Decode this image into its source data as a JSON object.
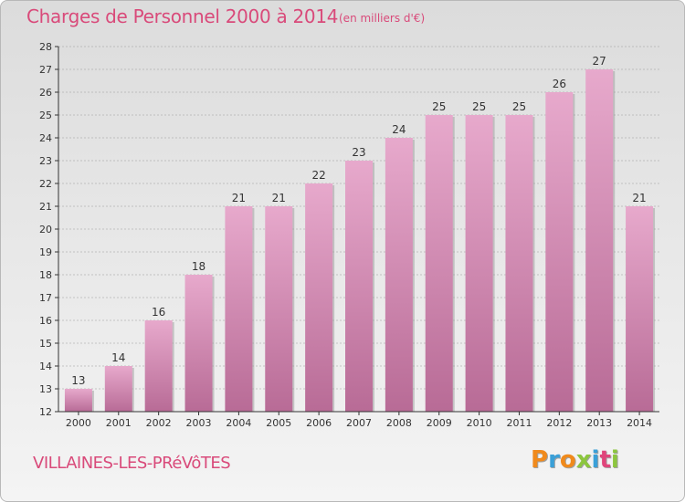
{
  "header": {
    "title": "Charges de Personnel 2000 à 2014",
    "unit": "(en milliers d'€)"
  },
  "footer": {
    "commune": "VILLAINES-LES-PRéVôTES",
    "logo": "Proxiti",
    "logo_colors": [
      "#f08a1c",
      "#3aa0d8",
      "#f08a1c",
      "#8cc63e",
      "#3aa0d8",
      "#e0457b",
      "#8cc63e"
    ]
  },
  "colors": {
    "bar_top": "#e7a9cc",
    "bar_bottom": "#b86b96",
    "bar_shadow": "#9a9a9a",
    "grid": "#999999",
    "axis": "#333333"
  },
  "chart_data": {
    "type": "bar",
    "title": "Charges de Personnel 2000 à 2014",
    "subtitle": "(en milliers d'€)",
    "categories": [
      "2000",
      "2001",
      "2002",
      "2003",
      "2004",
      "2005",
      "2006",
      "2007",
      "2008",
      "2009",
      "2010",
      "2011",
      "2012",
      "2013",
      "2014"
    ],
    "values": [
      13,
      14,
      16,
      18,
      21,
      21,
      22,
      23,
      24,
      25,
      25,
      25,
      26,
      27,
      21
    ],
    "ylim": [
      12,
      28
    ],
    "yticks": [
      12,
      13,
      14,
      15,
      16,
      17,
      18,
      19,
      20,
      21,
      22,
      23,
      24,
      25,
      26,
      27,
      28
    ],
    "grid": true,
    "xlabel": "",
    "ylabel": ""
  }
}
